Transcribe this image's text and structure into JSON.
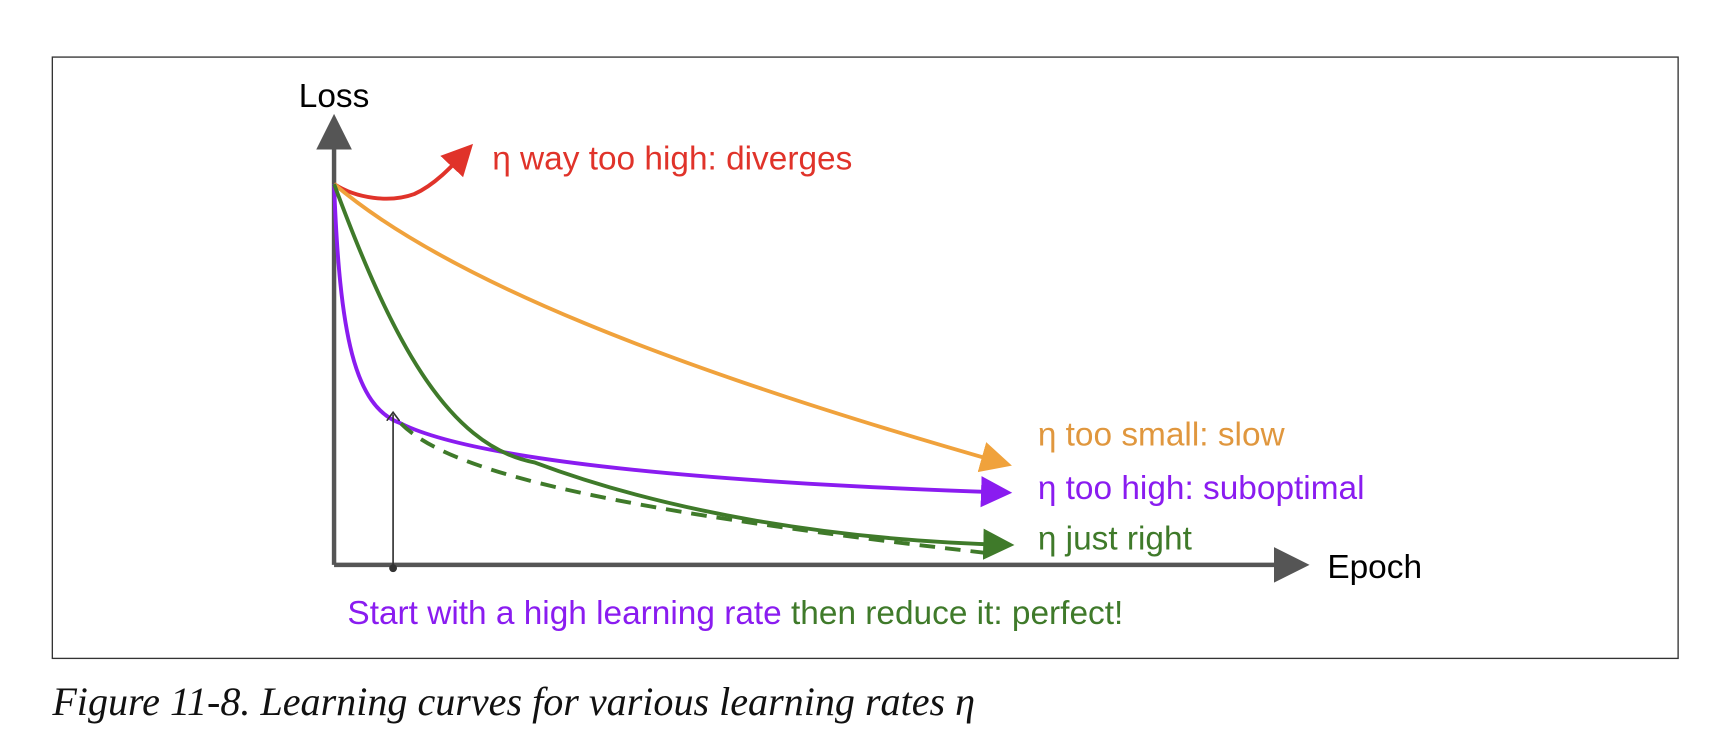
{
  "axes": {
    "y_label": "Loss",
    "x_label": "Epoch"
  },
  "curves": [
    {
      "label": "η way too high: diverges"
    },
    {
      "label": "η too small: slow"
    },
    {
      "label": "η too high: suboptimal"
    },
    {
      "label": "η just right"
    }
  ],
  "note": {
    "part1": "Start with a high learning rate",
    "part2": " then reduce it: perfect!"
  },
  "caption": "Figure 11-8. Learning curves for various learning rates η"
}
